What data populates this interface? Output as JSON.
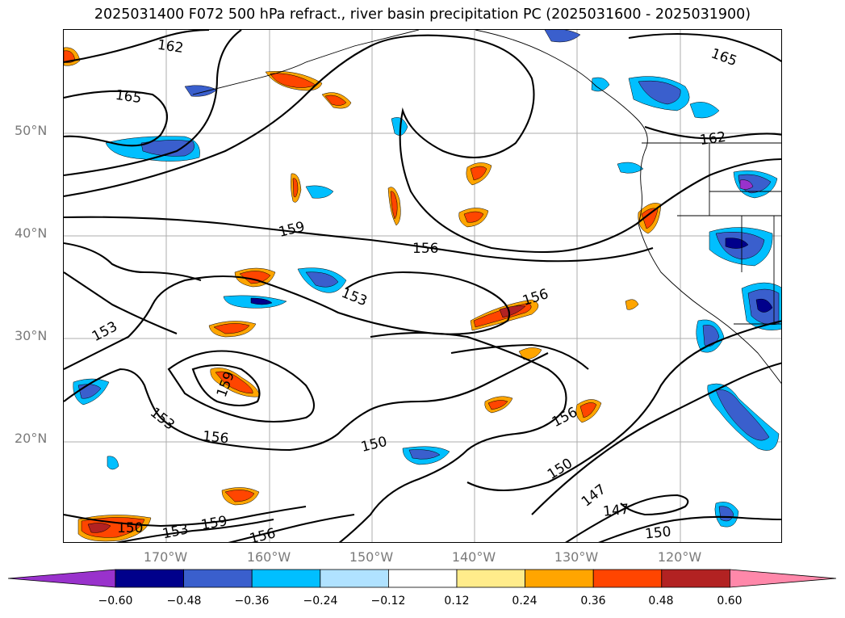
{
  "title": "2025031400 F072 500 hPa refract., river basin precipitation PC (2025031600 - 2025031900)",
  "lat_labels": [
    "50°N",
    "40°N",
    "30°N",
    "20°N"
  ],
  "lon_labels": [
    "170°W",
    "160°W",
    "150°W",
    "140°W",
    "130°W",
    "120°W"
  ],
  "contour_labels": [
    "162",
    "165",
    "165",
    "162",
    "159",
    "156",
    "153",
    "153",
    "156",
    "159",
    "153",
    "156",
    "150",
    "156",
    "150",
    "147",
    "147",
    "150",
    "150",
    "153",
    "159",
    "156"
  ],
  "colorbar": {
    "ticks": [
      "−0.60",
      "−0.48",
      "−0.36",
      "−0.24",
      "−0.12",
      "0.12",
      "0.24",
      "0.36",
      "0.48",
      "0.60"
    ],
    "colors": [
      "#9932cc",
      "#00008b",
      "#3a5fcd",
      "#00bfff",
      "#b0e2ff",
      "#ffffff",
      "#ffec8b",
      "#ffa500",
      "#ff4500",
      "#b22222",
      "#ff88aa"
    ]
  },
  "colors": {
    "contour": "#000000",
    "coast": "#000000",
    "grid": "#9a9a9a"
  }
}
